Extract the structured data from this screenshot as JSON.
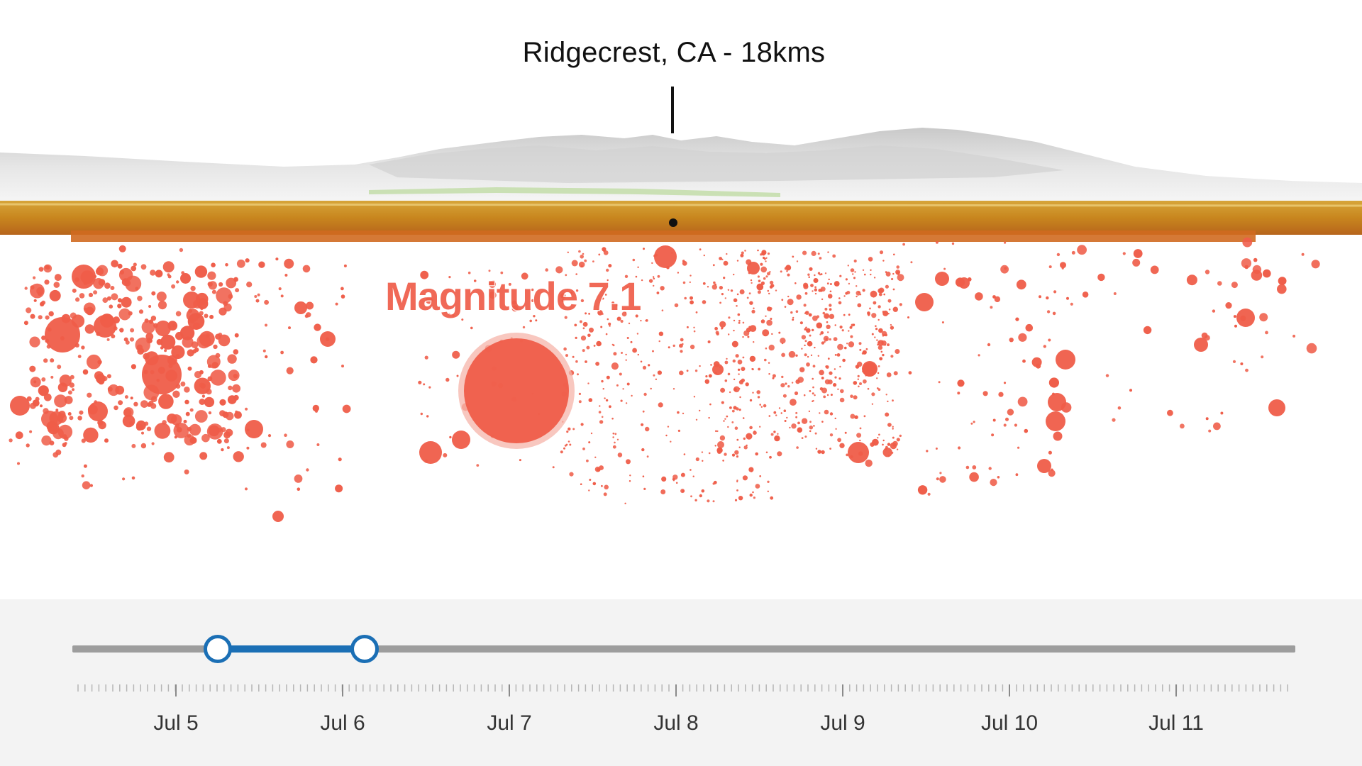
{
  "scene": {
    "location_label": "Ridgecrest, CA - 18kms",
    "highlight_label": "Magnitude 7.1",
    "colors": {
      "quake": "#ef5d49",
      "highlight_ring": "#f6b4aa",
      "ground": "#c98a1f",
      "terrain": "#d9d9d9"
    }
  },
  "time_slider": {
    "labels": [
      "Jul 5",
      "Jul 6",
      "Jul 7",
      "Jul 8",
      "Jul 9",
      "Jul 10",
      "Jul 11"
    ],
    "range_start_days": 0.25,
    "range_end_days": 1.13,
    "colors": {
      "track": "#9d9d9d",
      "range": "#1b6fb5",
      "background": "#f3f3f3"
    }
  }
}
